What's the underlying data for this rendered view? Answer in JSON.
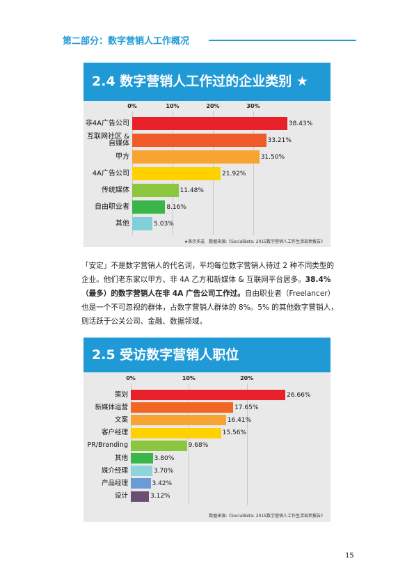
{
  "header": "第二部分：数字营销人工作概况",
  "paragraph": [
    {
      "text": "「安定」不是数字营销人的代名词，平均每位数字营销人待过 2 种不同类型的企业。他们老东家以甲方、非 4A 乙方和新媒体 & 互联网平台居多。",
      "bold": false
    },
    {
      "text": "38.4%（最多）的数字营销人在非 4A 广告公司工作过。",
      "bold": true
    },
    {
      "text": "自由职业者（Freelancer）也是一个不可忽视的群体，占数字营销人群体的 8%。5% 的其他数字营销人，则活跃于公关公司、金融、数据领域。",
      "bold": false
    }
  ],
  "page_number": "15",
  "chart_data": [
    {
      "type": "bar",
      "orientation": "horizontal",
      "title": "2.4 数字营销人工作过的企业类别 ★",
      "note": "★表示多选　数据来源:《SocialBeta: 2015数字营销人工作生活现状报告》",
      "categories": [
        "非4A广告公司",
        "互联网社区 & 自媒体",
        "甲方",
        "4A广告公司",
        "传统媒体",
        "自由职业者",
        "其他"
      ],
      "values": [
        38.43,
        33.21,
        31.5,
        21.92,
        11.48,
        8.16,
        5.03
      ],
      "value_labels": [
        "38.43%",
        "33.21%",
        "31.50%",
        "21.92%",
        "11.48%",
        "8.16%",
        "5.03%"
      ],
      "colors": [
        "#e8202a",
        "#f05a28",
        "#f7a433",
        "#ffd100",
        "#8cc63f",
        "#39b54a",
        "#7fd0d8"
      ],
      "xlim": [
        0,
        40
      ],
      "xticks": [
        {
          "value": 0,
          "label": "0%"
        },
        {
          "value": 10,
          "label": "10%"
        },
        {
          "value": 20,
          "label": "20%"
        },
        {
          "value": 30,
          "label": "30%"
        }
      ],
      "grid": true
    },
    {
      "type": "bar",
      "orientation": "horizontal",
      "title": "2.5 受访数字营销人职位",
      "note": "数据来源:《SocialBeta: 2015数字营销人工作生活现状报告》",
      "categories": [
        "策划",
        "新媒体运营",
        "文案",
        "客户经理",
        "PR/Branding",
        "其他",
        "媒介经理",
        "产品经理",
        "设计"
      ],
      "values": [
        26.66,
        17.65,
        16.41,
        15.56,
        9.68,
        3.8,
        3.7,
        3.42,
        3.12
      ],
      "value_labels": [
        "26.66%",
        "17.65%",
        "16.41%",
        "15.56%",
        "9.68%",
        "3.80%",
        "3.70%",
        "3.42%",
        "3.12%"
      ],
      "colors": [
        "#e8202a",
        "#f26522",
        "#f7a433",
        "#ffd100",
        "#8cc63f",
        "#39b54a",
        "#8dd4dc",
        "#6a9bd8",
        "#6b4e71"
      ],
      "xlim": [
        0,
        30
      ],
      "xticks": [
        {
          "value": 0,
          "label": "0%"
        },
        {
          "value": 10,
          "label": "10%"
        },
        {
          "value": 20,
          "label": "20%"
        }
      ],
      "grid": true
    }
  ]
}
